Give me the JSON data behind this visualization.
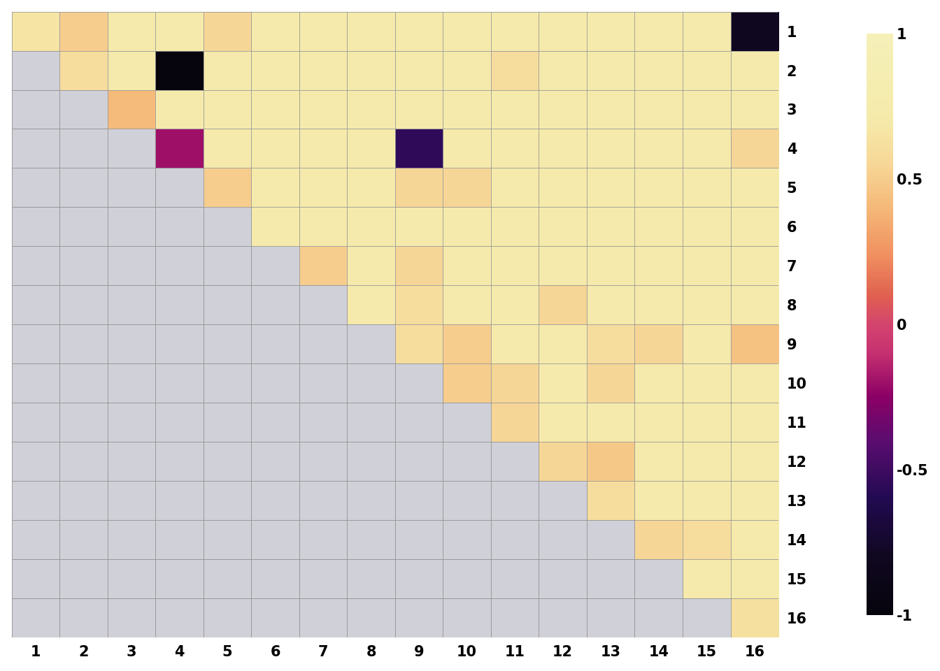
{
  "n_clusters": 16,
  "matrix": [
    [
      0.65,
      0.5,
      0.72,
      0.72,
      0.55,
      0.72,
      0.72,
      0.72,
      0.72,
      0.72,
      0.72,
      0.72,
      0.72,
      0.72,
      0.72,
      -0.8
    ],
    [
      null,
      0.6,
      0.72,
      -1.0,
      0.72,
      0.72,
      0.72,
      0.72,
      0.72,
      0.72,
      0.6,
      0.72,
      0.72,
      0.72,
      0.72,
      0.72
    ],
    [
      null,
      null,
      0.42,
      0.72,
      0.72,
      0.72,
      0.72,
      0.72,
      0.72,
      0.72,
      0.72,
      0.72,
      0.72,
      0.72,
      0.72,
      0.72
    ],
    [
      null,
      null,
      null,
      -0.2,
      0.72,
      0.72,
      0.72,
      0.72,
      -0.55,
      0.72,
      0.72,
      0.72,
      0.72,
      0.72,
      0.72,
      0.55
    ],
    [
      null,
      null,
      null,
      null,
      0.5,
      0.72,
      0.72,
      0.72,
      0.55,
      0.55,
      0.72,
      0.72,
      0.72,
      0.72,
      0.72,
      0.72
    ],
    [
      null,
      null,
      null,
      null,
      null,
      0.72,
      0.72,
      0.72,
      0.72,
      0.72,
      0.72,
      0.72,
      0.72,
      0.72,
      0.72,
      0.72
    ],
    [
      null,
      null,
      null,
      null,
      null,
      null,
      0.5,
      0.72,
      0.55,
      0.72,
      0.72,
      0.72,
      0.72,
      0.72,
      0.72,
      0.72
    ],
    [
      null,
      null,
      null,
      null,
      null,
      null,
      null,
      0.72,
      0.6,
      0.72,
      0.72,
      0.55,
      0.72,
      0.72,
      0.72,
      0.72
    ],
    [
      null,
      null,
      null,
      null,
      null,
      null,
      null,
      null,
      0.6,
      0.5,
      0.72,
      0.72,
      0.6,
      0.55,
      0.72,
      0.45
    ],
    [
      null,
      null,
      null,
      null,
      null,
      null,
      null,
      null,
      null,
      0.5,
      0.55,
      0.72,
      0.55,
      0.72,
      0.72,
      0.72
    ],
    [
      null,
      null,
      null,
      null,
      null,
      null,
      null,
      null,
      null,
      null,
      0.55,
      0.72,
      0.72,
      0.72,
      0.72,
      0.72
    ],
    [
      null,
      null,
      null,
      null,
      null,
      null,
      null,
      null,
      null,
      null,
      null,
      0.55,
      0.48,
      0.72,
      0.72,
      0.72
    ],
    [
      null,
      null,
      null,
      null,
      null,
      null,
      null,
      null,
      null,
      null,
      null,
      null,
      0.6,
      0.72,
      0.72,
      0.72
    ],
    [
      null,
      null,
      null,
      null,
      null,
      null,
      null,
      null,
      null,
      null,
      null,
      null,
      null,
      0.55,
      0.6,
      0.72
    ],
    [
      null,
      null,
      null,
      null,
      null,
      null,
      null,
      null,
      null,
      null,
      null,
      null,
      null,
      null,
      0.72,
      0.72
    ],
    [
      null,
      null,
      null,
      null,
      null,
      null,
      null,
      null,
      null,
      null,
      null,
      null,
      null,
      null,
      null,
      0.62
    ]
  ],
  "vmin": -1,
  "vmax": 1,
  "background_color": "#ffffff",
  "na_color": "#d0d0d8",
  "grid_color": "#999999",
  "tick_labels": [
    "1",
    "2",
    "3",
    "4",
    "5",
    "6",
    "7",
    "8",
    "9",
    "10",
    "11",
    "12",
    "13",
    "14",
    "15",
    "16"
  ],
  "colormap_nodes": [
    [
      0.0,
      "#06040c"
    ],
    [
      0.1,
      "#100820"
    ],
    [
      0.2,
      "#220a52"
    ],
    [
      0.3,
      "#5c0d70"
    ],
    [
      0.375,
      "#8b0065"
    ],
    [
      0.45,
      "#c43070"
    ],
    [
      0.5,
      "#d4446e"
    ],
    [
      0.55,
      "#e06050"
    ],
    [
      0.62,
      "#f09060"
    ],
    [
      0.7,
      "#f5b878"
    ],
    [
      0.78,
      "#f7d898"
    ],
    [
      0.85,
      "#f5eaaa"
    ],
    [
      1.0,
      "#f5f0b8"
    ]
  ]
}
